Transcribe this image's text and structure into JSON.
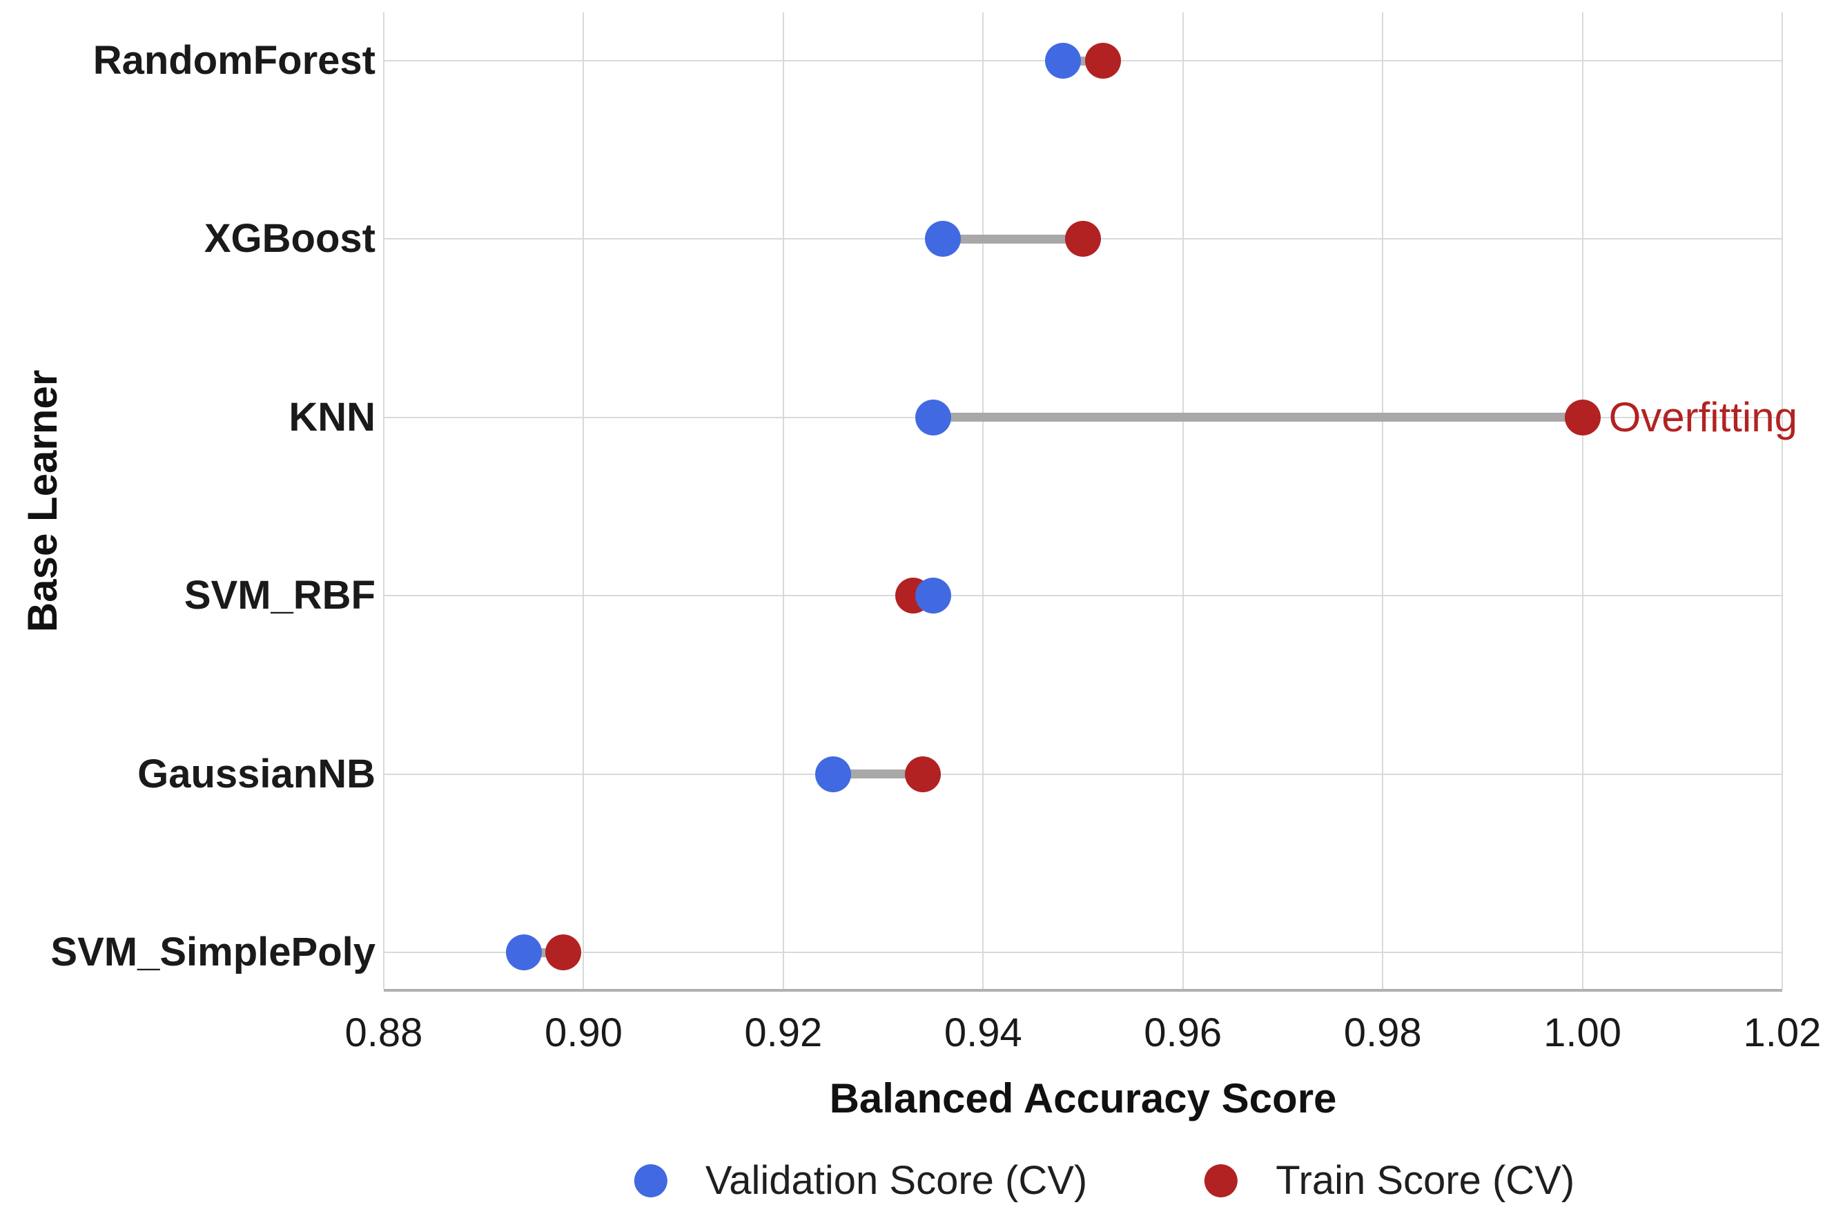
{
  "chart_data": {
    "type": "scatter",
    "subtype": "dumbbell",
    "title": "",
    "xlabel": "Balanced Accuracy Score",
    "ylabel": "Base Learner",
    "xlim": [
      0.88,
      1.02
    ],
    "xtick_labels": [
      "0.88",
      "0.90",
      "0.92",
      "0.94",
      "0.96",
      "0.98",
      "1.00",
      "1.02"
    ],
    "grid": true,
    "legend_position": "bottom",
    "categories": [
      "RandomForest",
      "XGBoost",
      "KNN",
      "SVM_RBF",
      "GaussianNB",
      "SVM_SimplePoly"
    ],
    "series": [
      {
        "name": "Validation Score (CV)",
        "color": "#4169E1",
        "values": [
          0.948,
          0.936,
          0.935,
          0.935,
          0.925,
          0.894
        ]
      },
      {
        "name": "Train Score (CV)",
        "color": "#B22222",
        "values": [
          0.952,
          0.95,
          1.0,
          0.933,
          0.934,
          0.898
        ]
      }
    ],
    "connector_color": "#a8a8a8",
    "annotation": {
      "text": "Overfitting",
      "category": "KNN",
      "x": 1.0,
      "color": "#B22222"
    }
  }
}
